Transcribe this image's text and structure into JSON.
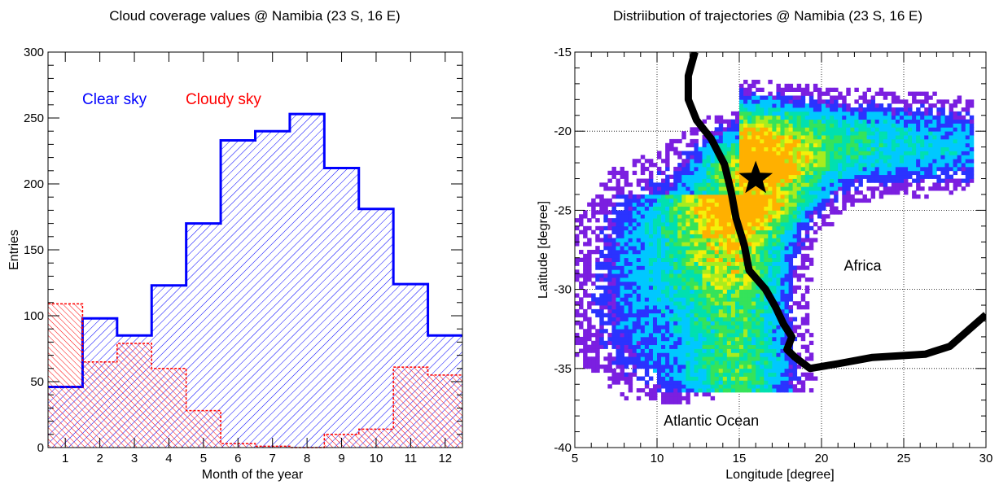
{
  "chart_data": [
    {
      "type": "histogram",
      "title": "Cloud coverage values @ Namibia (23 S, 16 E)",
      "xlabel": "Month of the year",
      "ylabel": "Entries",
      "xlim": [
        0.5,
        12.5
      ],
      "ylim": [
        0,
        300
      ],
      "x_ticks": [
        1,
        2,
        3,
        4,
        5,
        6,
        7,
        8,
        9,
        10,
        11,
        12
      ],
      "y_ticks": [
        0,
        50,
        100,
        150,
        200,
        250,
        300
      ],
      "categories": [
        1,
        2,
        3,
        4,
        5,
        6,
        7,
        8,
        9,
        10,
        11,
        12
      ],
      "series": [
        {
          "name": "Clear sky",
          "color": "#0000ff",
          "hatch": "diagonal-right",
          "values": [
            46,
            98,
            85,
            123,
            170,
            233,
            240,
            253,
            212,
            181,
            124,
            85
          ]
        },
        {
          "name": "Cloudy sky",
          "color": "#ff0000",
          "hatch": "diagonal-left",
          "values": [
            109,
            65,
            79,
            60,
            28,
            3,
            1,
            0,
            10,
            14,
            61,
            55
          ]
        }
      ],
      "legend": "top-left",
      "grid": false
    },
    {
      "type": "heatmap",
      "title": "Distriibution of trajectories @ Namibia (23 S, 16 E)",
      "xlabel": "Longitude [degree]",
      "ylabel": "Latitude [degree]",
      "xlim": [
        5,
        30
      ],
      "ylim": [
        -40,
        -15
      ],
      "x_ticks": [
        5,
        10,
        15,
        20,
        25,
        30
      ],
      "y_ticks": [
        -40,
        -35,
        -30,
        -25,
        -20,
        -15
      ],
      "grid": true,
      "colormap": [
        "#7b1fe0",
        "#2a33ff",
        "#00c8ff",
        "#00e0b0",
        "#35e35a",
        "#a8ec1e",
        "#f4f00a",
        "#ffb000"
      ],
      "site": {
        "lon": 16,
        "lat": -23,
        "marker": "star"
      },
      "coastline": [
        [
          12.3,
          -15.0
        ],
        [
          11.9,
          -16.5
        ],
        [
          11.9,
          -18.0
        ],
        [
          12.4,
          -19.3
        ],
        [
          13.3,
          -20.5
        ],
        [
          14.1,
          -22.1
        ],
        [
          14.5,
          -23.8
        ],
        [
          14.8,
          -25.5
        ],
        [
          15.3,
          -27.2
        ],
        [
          15.6,
          -28.8
        ],
        [
          16.6,
          -30.0
        ],
        [
          17.2,
          -31.1
        ],
        [
          17.7,
          -32.2
        ],
        [
          18.2,
          -33.0
        ],
        [
          17.9,
          -33.8
        ],
        [
          18.4,
          -34.3
        ],
        [
          19.3,
          -35.0
        ],
        [
          21.0,
          -34.7
        ],
        [
          23.1,
          -34.3
        ],
        [
          26.3,
          -34.1
        ],
        [
          27.8,
          -33.6
        ],
        [
          30.0,
          -31.6
        ]
      ],
      "annotations": [
        {
          "text": "Africa",
          "lon": 22.5,
          "lat": -28.8
        },
        {
          "text": "Atlantic Ocean",
          "lon": 13.3,
          "lat": -38.6
        }
      ]
    }
  ]
}
